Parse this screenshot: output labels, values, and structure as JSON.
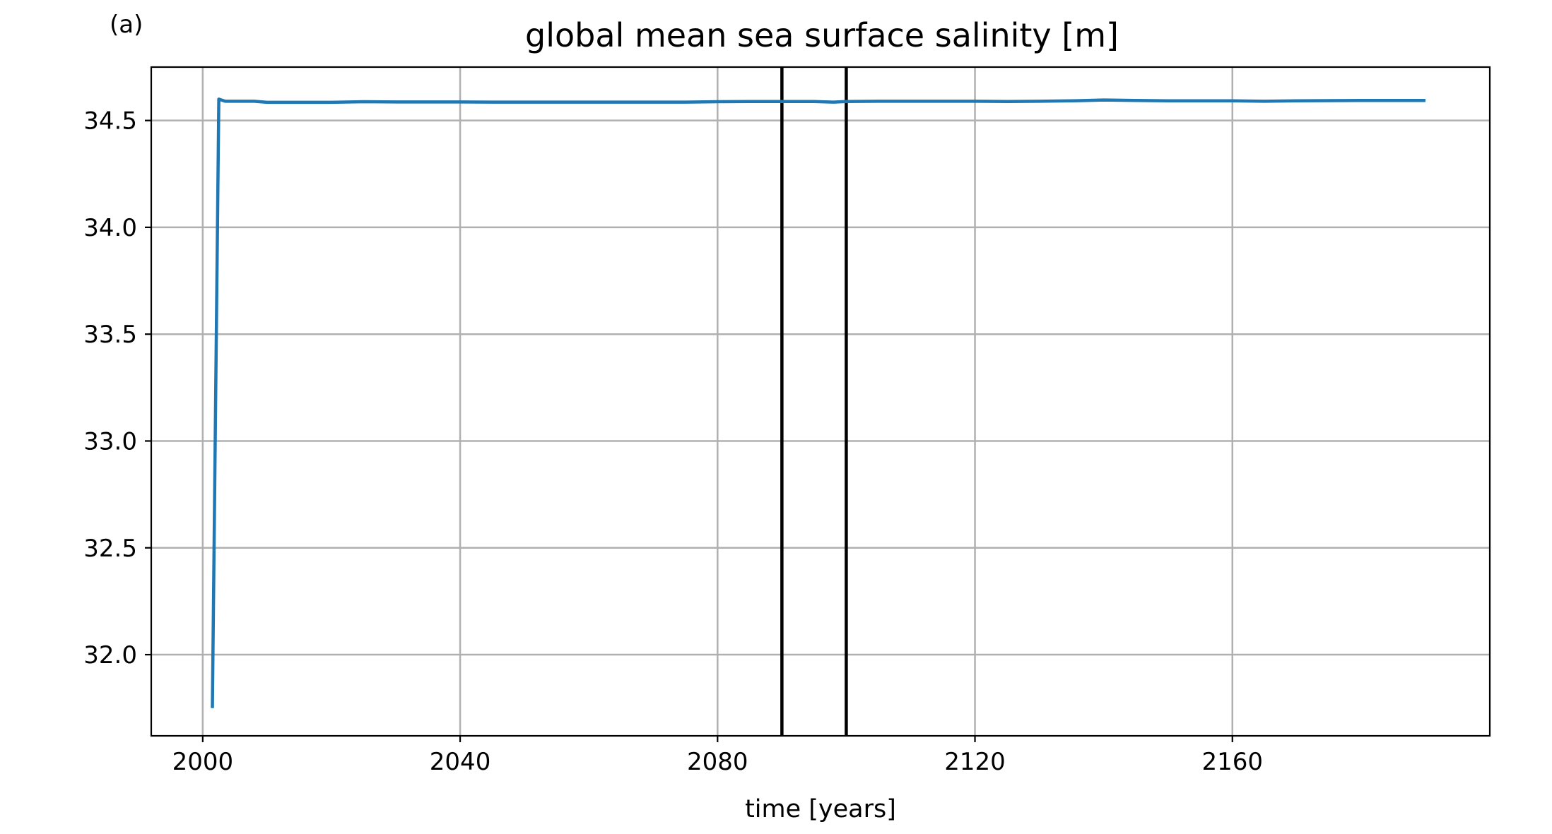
{
  "chart_data": {
    "type": "line",
    "panel_label": "(a)",
    "title": "global mean sea surface salinity [m]",
    "xlabel": "time [years]",
    "ylabel": "",
    "xlim": [
      1992,
      2200
    ],
    "ylim": [
      31.62,
      34.75
    ],
    "xticks": [
      2000,
      2040,
      2080,
      2120,
      2160
    ],
    "yticks": [
      32.0,
      32.5,
      33.0,
      33.5,
      34.0,
      34.5
    ],
    "ytick_labels": [
      "32.0",
      "32.5",
      "33.0",
      "33.5",
      "34.0",
      "34.5"
    ],
    "grid": true,
    "legend": "none",
    "line_color": "#1f77b4",
    "vline_color": "#000000",
    "vlines": [
      2090,
      2100
    ],
    "series": [
      {
        "x": [
          2001.5,
          2002.5,
          2003.5,
          2005,
          2008,
          2010,
          2015,
          2020,
          2025,
          2030,
          2035,
          2040,
          2045,
          2050,
          2055,
          2060,
          2065,
          2070,
          2075,
          2080,
          2085,
          2090,
          2095,
          2098,
          2100,
          2105,
          2110,
          2115,
          2120,
          2125,
          2130,
          2135,
          2140,
          2145,
          2150,
          2155,
          2160,
          2165,
          2170,
          2175,
          2180,
          2185,
          2190
        ],
        "y": [
          31.75,
          34.6,
          34.59,
          34.59,
          34.59,
          34.585,
          34.585,
          34.585,
          34.588,
          34.587,
          34.587,
          34.587,
          34.586,
          34.586,
          34.586,
          34.586,
          34.586,
          34.586,
          34.586,
          34.588,
          34.589,
          34.589,
          34.589,
          34.586,
          34.589,
          34.59,
          34.59,
          34.59,
          34.59,
          34.589,
          34.59,
          34.592,
          34.596,
          34.594,
          34.592,
          34.592,
          34.592,
          34.59,
          34.592,
          34.593,
          34.594,
          34.594,
          34.594
        ]
      }
    ]
  }
}
